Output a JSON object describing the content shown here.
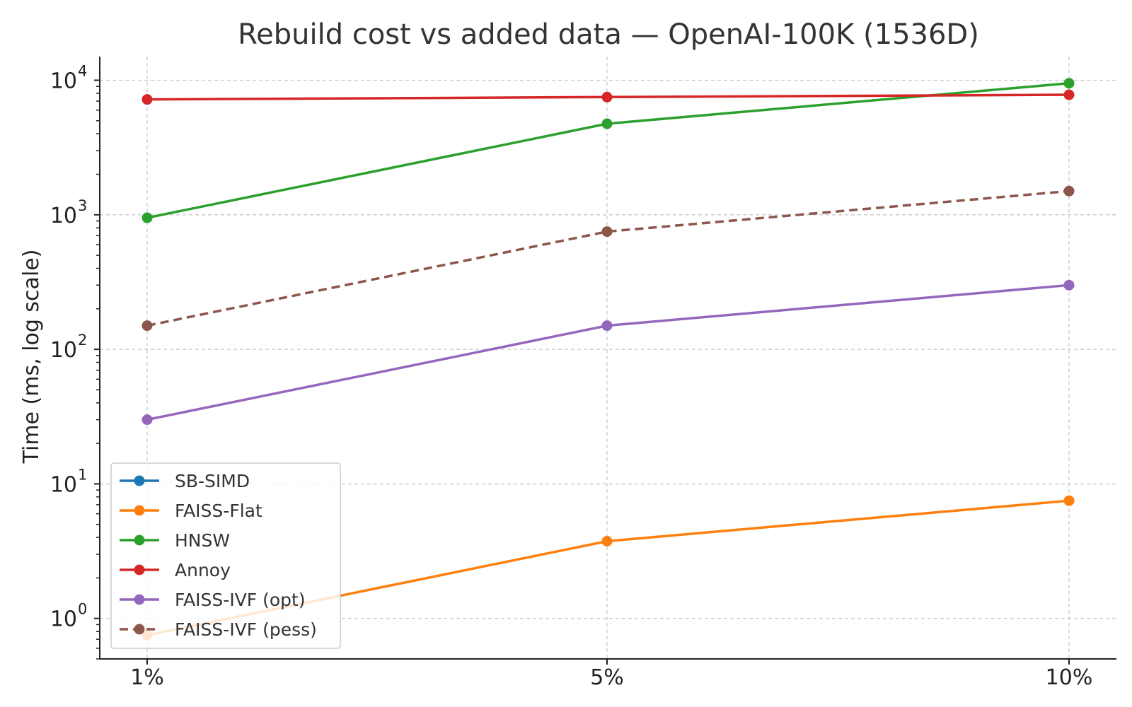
{
  "chart_data": {
    "type": "line",
    "title": "Rebuild cost vs added data — OpenAI-100K (1536D)",
    "xlabel": "",
    "ylabel": "Time (ms, log scale)",
    "categories": [
      "1%",
      "5%",
      "10%"
    ],
    "y_scale": "log",
    "ylim": [
      0.5,
      15000
    ],
    "y_ticks": [
      {
        "value": 1,
        "base": "10",
        "exp": "0"
      },
      {
        "value": 10,
        "base": "10",
        "exp": "1"
      },
      {
        "value": 100,
        "base": "10",
        "exp": "2"
      },
      {
        "value": 1000,
        "base": "10",
        "exp": "3"
      },
      {
        "value": 10000,
        "base": "10",
        "exp": "4"
      }
    ],
    "grid": true,
    "legend_position": "lower-left",
    "series": [
      {
        "name": "SB-SIMD",
        "color": "#1f77b4",
        "dash": false,
        "values": [
          null,
          null,
          null
        ]
      },
      {
        "name": "FAISS-Flat",
        "color": "#ff7f0e",
        "dash": false,
        "values": [
          0.75,
          3.75,
          7.5
        ]
      },
      {
        "name": "HNSW",
        "color": "#2ca02c",
        "dash": false,
        "values": [
          950,
          4750,
          9500
        ]
      },
      {
        "name": "Annoy",
        "color": "#d62728",
        "dash": false,
        "values": [
          7200,
          7500,
          7800
        ]
      },
      {
        "name": "FAISS-IVF (opt)",
        "color": "#9467bd",
        "dash": false,
        "values": [
          30,
          150,
          300
        ]
      },
      {
        "name": "FAISS-IVF (pess)",
        "color": "#8c564b",
        "dash": true,
        "values": [
          150,
          750,
          1500
        ]
      }
    ]
  }
}
